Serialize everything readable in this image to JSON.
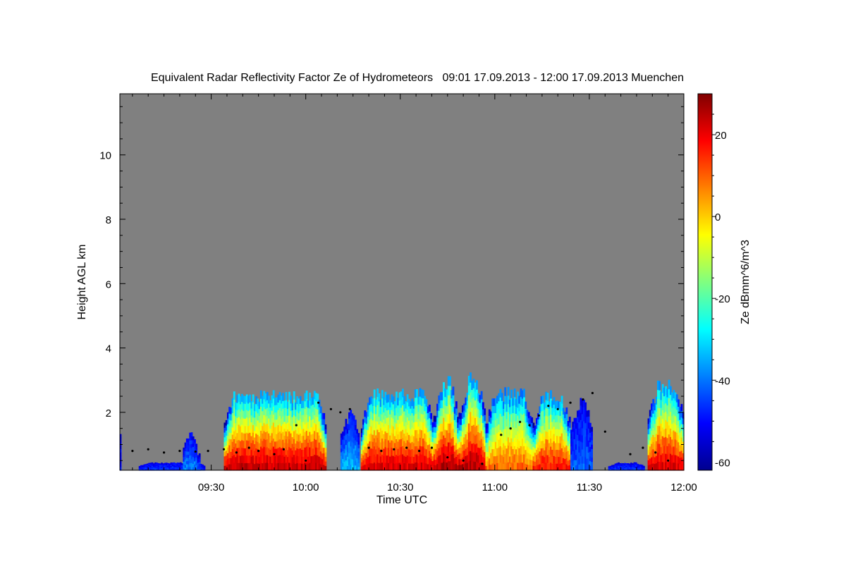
{
  "chart_data": {
    "type": "heatmap",
    "title": "Equivalent Radar Reflectivity Factor Ze of Hydrometeors   09:01 17.09.2013 - 12:00 17.09.2013 Muenchen",
    "xlabel": "Time UTC",
    "ylabel": "Height AGL km",
    "x_range_minutes": [
      541,
      720
    ],
    "x_ticks": [
      {
        "minutes": 570,
        "label": "09:30"
      },
      {
        "minutes": 600,
        "label": "10:00"
      },
      {
        "minutes": 630,
        "label": "10:30"
      },
      {
        "minutes": 660,
        "label": "11:00"
      },
      {
        "minutes": 690,
        "label": "11:30"
      },
      {
        "minutes": 720,
        "label": "12:00"
      }
    ],
    "ylim": [
      0.2,
      11.9
    ],
    "y_ticks": [
      2,
      4,
      6,
      8,
      10
    ],
    "background_color": "#808080",
    "colorbar": {
      "label": "Ze dBmm^6/m^3",
      "range": [
        -62,
        30
      ],
      "ticks": [
        20,
        0,
        -20,
        -40,
        -60
      ],
      "colors": [
        "#00008f",
        "#0000ff",
        "#0080ff",
        "#00ffff",
        "#80ff80",
        "#ffff00",
        "#ff8000",
        "#ff0000",
        "#800000"
      ]
    },
    "cloud_segments": [
      {
        "start": 541.0,
        "end": 541.4,
        "top": 2.2,
        "max_ze": -45
      },
      {
        "start": 547.0,
        "end": 568.0,
        "top": 0.45,
        "max_ze": -42
      },
      {
        "start": 561.0,
        "end": 565.5,
        "top": 1.6,
        "max_ze": -35
      },
      {
        "start": 565.5,
        "end": 566.5,
        "top": 1.1,
        "max_ze": -38
      },
      {
        "start": 574.0,
        "end": 606.5,
        "top": 2.7,
        "max_ze": 28
      },
      {
        "start": 611.0,
        "end": 617.0,
        "top": 2.2,
        "max_ze": -30
      },
      {
        "start": 617.5,
        "end": 640.5,
        "top": 2.8,
        "max_ze": 26
      },
      {
        "start": 640.5,
        "end": 648.5,
        "top": 3.2,
        "max_ze": 30
      },
      {
        "start": 648.5,
        "end": 657.0,
        "top": 3.3,
        "max_ze": 30
      },
      {
        "start": 657.0,
        "end": 672.0,
        "top": 2.8,
        "max_ze": 14
      },
      {
        "start": 672.0,
        "end": 684.0,
        "top": 2.7,
        "max_ze": 22
      },
      {
        "start": 684.0,
        "end": 691.0,
        "top": 2.6,
        "max_ze": -38
      },
      {
        "start": 696.0,
        "end": 707.5,
        "top": 0.45,
        "max_ze": -42
      },
      {
        "start": 708.5,
        "end": 720.0,
        "top": 3.1,
        "max_ze": 26
      }
    ],
    "cloud_base_points": [
      {
        "minutes": 545,
        "height": 0.8
      },
      {
        "minutes": 550,
        "height": 0.85
      },
      {
        "minutes": 555,
        "height": 0.75
      },
      {
        "minutes": 560,
        "height": 0.8
      },
      {
        "minutes": 565,
        "height": 0.78
      },
      {
        "minutes": 569,
        "height": 0.8
      },
      {
        "minutes": 574,
        "height": 0.85
      },
      {
        "minutes": 578,
        "height": 0.75
      },
      {
        "minutes": 582,
        "height": 0.9
      },
      {
        "minutes": 585,
        "height": 0.8
      },
      {
        "minutes": 590,
        "height": 0.7
      },
      {
        "minutes": 593,
        "height": 0.85
      },
      {
        "minutes": 597,
        "height": 1.6
      },
      {
        "minutes": 600,
        "height": 0.5
      },
      {
        "minutes": 604,
        "height": 2.3
      },
      {
        "minutes": 608,
        "height": 2.1
      },
      {
        "minutes": 611,
        "height": 2.0
      },
      {
        "minutes": 614,
        "height": 2.1
      },
      {
        "minutes": 620,
        "height": 0.9
      },
      {
        "minutes": 624,
        "height": 0.8
      },
      {
        "minutes": 628,
        "height": 0.85
      },
      {
        "minutes": 632,
        "height": 0.9
      },
      {
        "minutes": 636,
        "height": 0.8
      },
      {
        "minutes": 640,
        "height": 0.9
      },
      {
        "minutes": 645,
        "height": 0.6
      },
      {
        "minutes": 650,
        "height": 0.5
      },
      {
        "minutes": 656,
        "height": 0.4
      },
      {
        "minutes": 662,
        "height": 1.3
      },
      {
        "minutes": 665,
        "height": 1.5
      },
      {
        "minutes": 668,
        "height": 1.7
      },
      {
        "minutes": 671,
        "height": 1.6
      },
      {
        "minutes": 674,
        "height": 1.9
      },
      {
        "minutes": 677,
        "height": 2.2
      },
      {
        "minutes": 680,
        "height": 2.1
      },
      {
        "minutes": 684,
        "height": 2.3
      },
      {
        "minutes": 688,
        "height": 2.4
      },
      {
        "minutes": 691,
        "height": 2.6
      },
      {
        "minutes": 695,
        "height": 1.4
      },
      {
        "minutes": 703,
        "height": 0.7
      },
      {
        "minutes": 707,
        "height": 0.9
      },
      {
        "minutes": 711,
        "height": 0.75
      },
      {
        "minutes": 715,
        "height": 0.5
      }
    ]
  }
}
